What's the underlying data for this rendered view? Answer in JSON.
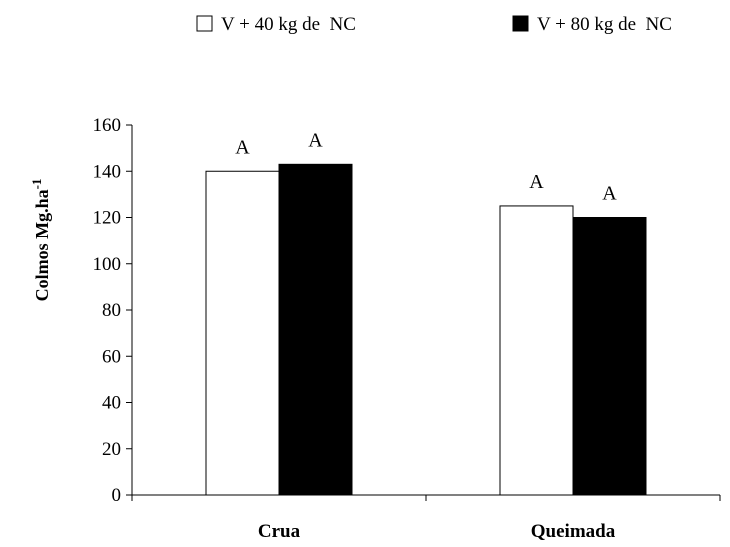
{
  "chart_data": {
    "type": "bar",
    "categories": [
      "Crua",
      "Queimada"
    ],
    "series": [
      {
        "name": "V + 40 kg de  NC",
        "values": [
          140,
          125
        ],
        "color": "#ffffff",
        "labels": [
          "A",
          "A"
        ]
      },
      {
        "name": "V + 80 kg de  NC",
        "values": [
          143,
          120
        ],
        "color": "#000000",
        "labels": [
          "A",
          "A"
        ]
      }
    ],
    "ylabel_main": "Colmos Mg.ha",
    "ylabel_superscript": "-1",
    "ylim": [
      0,
      160
    ],
    "yticks": [
      0,
      20,
      40,
      60,
      80,
      100,
      120,
      140,
      160
    ],
    "grid": false,
    "legend_position": "top"
  }
}
